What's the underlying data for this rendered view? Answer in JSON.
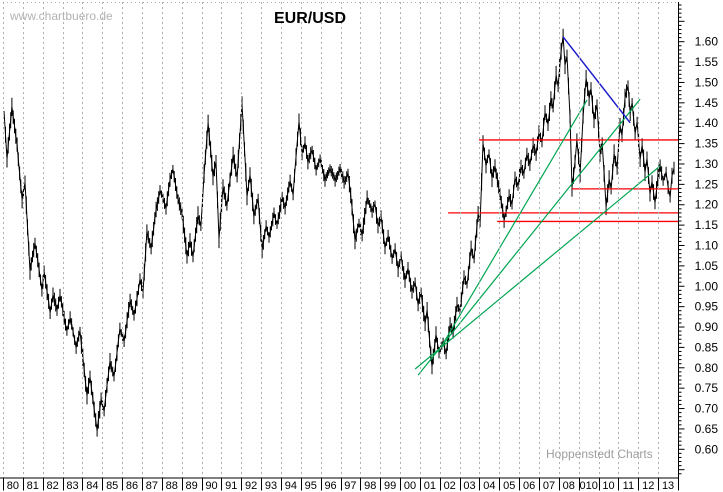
{
  "header": {
    "watermark": "www.chartbuero.de",
    "title": "EUR/USD",
    "credit": "Hoppenstedt Charts"
  },
  "colors": {
    "price": "#000000",
    "grid": "#b0b0b0",
    "axis": "#000000",
    "level_red": "#ff0000",
    "trend_green": "#00a651",
    "trend_blue": "#1c1ccd",
    "watermark_gray": "#b3b3b3",
    "credit_gray": "#9e9e9e"
  },
  "chart_data": {
    "type": "line",
    "title": "EUR/USD",
    "grid": "vertical-dashed",
    "legend": null,
    "x_axis": {
      "start_year": 1980,
      "end_year": 2014,
      "labels": [
        "80",
        "81",
        "82",
        "83",
        "84",
        "85",
        "86",
        "87",
        "88",
        "89",
        "90",
        "91",
        "92",
        "93",
        "94",
        "95",
        "96",
        "97",
        "98",
        "99",
        "00",
        "01",
        "02",
        "03",
        "04",
        "05",
        "06",
        "07",
        "08",
        "010",
        "10",
        "11",
        "12",
        "13"
      ]
    },
    "y_axis": {
      "min": 0.6,
      "max": 1.6,
      "tick_step": 0.05,
      "minor_step": 0.01,
      "labels": [
        "1.60",
        "1.55",
        "1.50",
        "1.45",
        "1.40",
        "1.35",
        "1.30",
        "1.25",
        "1.20",
        "1.15",
        "1.10",
        "1.05",
        "1.00",
        "0.95",
        "0.90",
        "0.85",
        "0.80",
        "0.75",
        "0.70",
        "0.65",
        "0.60"
      ]
    },
    "series": [
      {
        "name": "EUR/USD",
        "points": [
          [
            1980.05,
            1.43
          ],
          [
            1980.2,
            1.315
          ],
          [
            1980.45,
            1.44
          ],
          [
            1980.71,
            1.345
          ],
          [
            1980.96,
            1.21
          ],
          [
            1981.11,
            1.25
          ],
          [
            1981.36,
            1.03
          ],
          [
            1981.61,
            1.1
          ],
          [
            1981.96,
            0.99
          ],
          [
            1982.07,
            1.035
          ],
          [
            1982.37,
            0.935
          ],
          [
            1982.52,
            0.98
          ],
          [
            1982.72,
            0.94
          ],
          [
            1982.87,
            0.975
          ],
          [
            1983.22,
            0.89
          ],
          [
            1983.38,
            0.925
          ],
          [
            1983.68,
            0.855
          ],
          [
            1983.88,
            0.89
          ],
          [
            1984.23,
            0.73
          ],
          [
            1984.38,
            0.78
          ],
          [
            1984.74,
            0.645
          ],
          [
            1984.94,
            0.72
          ],
          [
            1985.09,
            0.69
          ],
          [
            1985.39,
            0.815
          ],
          [
            1985.59,
            0.775
          ],
          [
            1985.89,
            0.89
          ],
          [
            1986.1,
            0.862
          ],
          [
            1986.4,
            0.965
          ],
          [
            1986.6,
            0.928
          ],
          [
            1986.9,
            1.02
          ],
          [
            1987.05,
            0.99
          ],
          [
            1987.25,
            1.14
          ],
          [
            1987.46,
            1.1
          ],
          [
            1987.71,
            1.19
          ],
          [
            1987.91,
            1.237
          ],
          [
            1988.21,
            1.19
          ],
          [
            1988.41,
            1.26
          ],
          [
            1988.56,
            1.285
          ],
          [
            1988.82,
            1.21
          ],
          [
            1989.02,
            1.17
          ],
          [
            1989.27,
            1.065
          ],
          [
            1989.42,
            1.11
          ],
          [
            1989.57,
            1.07
          ],
          [
            1989.82,
            1.17
          ],
          [
            1989.97,
            1.14
          ],
          [
            1990.13,
            1.27
          ],
          [
            1990.33,
            1.4
          ],
          [
            1990.58,
            1.27
          ],
          [
            1990.73,
            1.31
          ],
          [
            1990.88,
            1.12
          ],
          [
            1991.08,
            1.245
          ],
          [
            1991.28,
            1.2
          ],
          [
            1991.59,
            1.325
          ],
          [
            1991.79,
            1.27
          ],
          [
            1992.04,
            1.45
          ],
          [
            1992.29,
            1.22
          ],
          [
            1992.44,
            1.27
          ],
          [
            1992.64,
            1.17
          ],
          [
            1992.85,
            1.21
          ],
          [
            1993.05,
            1.085
          ],
          [
            1993.25,
            1.14
          ],
          [
            1993.4,
            1.115
          ],
          [
            1993.65,
            1.18
          ],
          [
            1993.8,
            1.15
          ],
          [
            1994.06,
            1.22
          ],
          [
            1994.21,
            1.19
          ],
          [
            1994.46,
            1.26
          ],
          [
            1994.61,
            1.23
          ],
          [
            1994.91,
            1.41
          ],
          [
            1995.06,
            1.33
          ],
          [
            1995.21,
            1.355
          ],
          [
            1995.36,
            1.305
          ],
          [
            1995.57,
            1.335
          ],
          [
            1995.77,
            1.285
          ],
          [
            1995.97,
            1.315
          ],
          [
            1996.22,
            1.265
          ],
          [
            1996.47,
            1.29
          ],
          [
            1996.73,
            1.255
          ],
          [
            1996.98,
            1.285
          ],
          [
            1997.18,
            1.25
          ],
          [
            1997.38,
            1.27
          ],
          [
            1997.58,
            1.19
          ],
          [
            1997.73,
            1.115
          ],
          [
            1997.93,
            1.16
          ],
          [
            1998.09,
            1.13
          ],
          [
            1998.34,
            1.22
          ],
          [
            1998.59,
            1.185
          ],
          [
            1998.74,
            1.205
          ],
          [
            1998.89,
            1.15
          ],
          [
            1999.04,
            1.175
          ],
          [
            1999.24,
            1.1
          ],
          [
            1999.4,
            1.13
          ],
          [
            1999.6,
            1.075
          ],
          [
            1999.75,
            1.1
          ],
          [
            1999.9,
            1.05
          ],
          [
            2000.05,
            1.08
          ],
          [
            2000.25,
            1.015
          ],
          [
            2000.4,
            1.045
          ],
          [
            2000.6,
            0.985
          ],
          [
            2000.76,
            1.01
          ],
          [
            2000.91,
            0.955
          ],
          [
            2001.06,
            0.985
          ],
          [
            2001.26,
            0.91
          ],
          [
            2001.36,
            0.945
          ],
          [
            2001.61,
            0.808
          ],
          [
            2001.81,
            0.89
          ],
          [
            2001.96,
            0.845
          ],
          [
            2002.17,
            0.87
          ],
          [
            2002.32,
            0.84
          ],
          [
            2002.52,
            0.91
          ],
          [
            2002.67,
            0.89
          ],
          [
            2002.87,
            0.96
          ],
          [
            2003.02,
            0.94
          ],
          [
            2003.22,
            1.02
          ],
          [
            2003.37,
            1.0
          ],
          [
            2003.58,
            1.09
          ],
          [
            2003.73,
            1.065
          ],
          [
            2003.93,
            1.18
          ],
          [
            2004.03,
            1.16
          ],
          [
            2004.18,
            1.355
          ],
          [
            2004.33,
            1.3
          ],
          [
            2004.48,
            1.33
          ],
          [
            2004.63,
            1.27
          ],
          [
            2004.78,
            1.3
          ],
          [
            2005.03,
            1.23
          ],
          [
            2005.24,
            1.165
          ],
          [
            2005.34,
            1.185
          ],
          [
            2005.49,
            1.225
          ],
          [
            2005.64,
            1.2
          ],
          [
            2005.79,
            1.26
          ],
          [
            2005.94,
            1.24
          ],
          [
            2006.09,
            1.29
          ],
          [
            2006.24,
            1.27
          ],
          [
            2006.39,
            1.32
          ],
          [
            2006.54,
            1.29
          ],
          [
            2006.7,
            1.34
          ],
          [
            2006.85,
            1.315
          ],
          [
            2007.0,
            1.37
          ],
          [
            2007.15,
            1.345
          ],
          [
            2007.3,
            1.42
          ],
          [
            2007.45,
            1.39
          ],
          [
            2007.6,
            1.46
          ],
          [
            2007.71,
            1.44
          ],
          [
            2007.86,
            1.52
          ],
          [
            2007.96,
            1.49
          ],
          [
            2008.11,
            1.575
          ],
          [
            2008.21,
            1.61
          ],
          [
            2008.31,
            1.54
          ],
          [
            2008.41,
            1.56
          ],
          [
            2008.56,
            1.41
          ],
          [
            2008.66,
            1.235
          ],
          [
            2008.81,
            1.3
          ],
          [
            2008.91,
            1.355
          ],
          [
            2009.07,
            1.28
          ],
          [
            2009.22,
            1.42
          ],
          [
            2009.37,
            1.51
          ],
          [
            2009.52,
            1.46
          ],
          [
            2009.62,
            1.485
          ],
          [
            2009.77,
            1.405
          ],
          [
            2009.92,
            1.44
          ],
          [
            2010.07,
            1.32
          ],
          [
            2010.18,
            1.345
          ],
          [
            2010.28,
            1.27
          ],
          [
            2010.38,
            1.19
          ],
          [
            2010.53,
            1.26
          ],
          [
            2010.63,
            1.235
          ],
          [
            2010.78,
            1.32
          ],
          [
            2010.93,
            1.29
          ],
          [
            2011.08,
            1.395
          ],
          [
            2011.18,
            1.37
          ],
          [
            2011.33,
            1.46
          ],
          [
            2011.48,
            1.49
          ],
          [
            2011.59,
            1.42
          ],
          [
            2011.69,
            1.445
          ],
          [
            2011.84,
            1.37
          ],
          [
            2011.94,
            1.4
          ],
          [
            2012.09,
            1.31
          ],
          [
            2012.19,
            1.345
          ],
          [
            2012.34,
            1.28
          ],
          [
            2012.44,
            1.315
          ],
          [
            2012.59,
            1.23
          ],
          [
            2012.69,
            1.26
          ],
          [
            2012.84,
            1.205
          ],
          [
            2012.99,
            1.27
          ],
          [
            2013.1,
            1.3
          ],
          [
            2013.25,
            1.26
          ],
          [
            2013.4,
            1.28
          ],
          [
            2013.5,
            1.24
          ],
          [
            2013.6,
            1.215
          ],
          [
            2013.7,
            1.27
          ],
          [
            2013.8,
            1.29
          ]
        ]
      }
    ],
    "trend_lines": [
      {
        "name": "fan-line-steep",
        "color": "green",
        "from": [
          2001.92,
          0.839
        ],
        "to": [
          2009.42,
          1.457
        ]
      },
      {
        "name": "fan-line-middle",
        "color": "green",
        "from": [
          2000.91,
          0.782
        ],
        "to": [
          2012.09,
          1.459
        ]
      },
      {
        "name": "fan-line-shallow",
        "color": "green",
        "from": [
          2000.76,
          0.797
        ],
        "to": [
          2013.1,
          1.295
        ]
      },
      {
        "name": "downtrend-2008",
        "color": "blue",
        "from": [
          2008.21,
          1.612
        ],
        "to": [
          2011.59,
          1.401
        ]
      }
    ],
    "horizontal_lines": [
      {
        "name": "resistance-1.36",
        "color": "red",
        "price": 1.359,
        "from_year": 2003.98,
        "to_year": 2014.01
      },
      {
        "name": "support-1.24",
        "color": "red",
        "price": 1.239,
        "from_year": 2008.66,
        "to_year": 2014.01
      },
      {
        "name": "support-1.18",
        "color": "red",
        "price": 1.18,
        "from_year": 2002.42,
        "to_year": 2014.01
      },
      {
        "name": "support-1.16",
        "color": "red",
        "price": 1.159,
        "from_year": 2004.89,
        "to_year": 2014.01
      }
    ]
  }
}
